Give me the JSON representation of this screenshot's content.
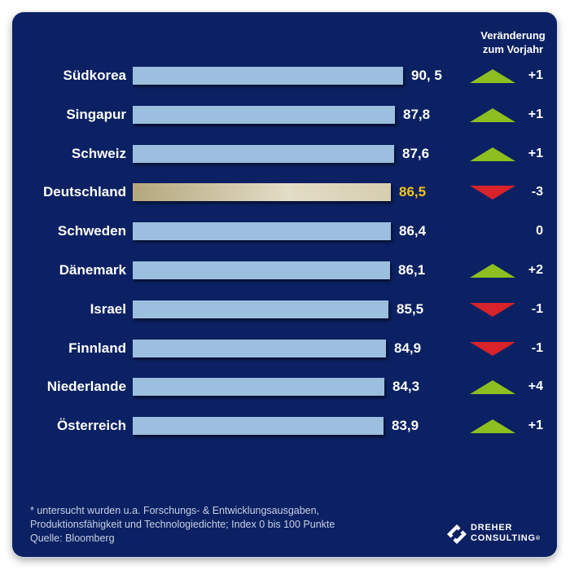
{
  "header": {
    "line1": "Veränderung",
    "line2": "zum Vorjahr"
  },
  "chart_data": {
    "type": "bar",
    "orientation": "horizontal",
    "xlim": [
      0,
      90.5
    ],
    "categories": [
      "Südkorea",
      "Singapur",
      "Schweiz",
      "Deutschland",
      "Schweden",
      "Dänemark",
      "Israel",
      "Finnland",
      "Niederlande",
      "Österreich"
    ],
    "values": [
      90.5,
      87.8,
      87.6,
      86.5,
      86.4,
      86.1,
      85.5,
      84.9,
      84.3,
      83.9
    ],
    "value_labels": [
      "90, 5",
      "87,8",
      "87,6",
      "86,5",
      "86,4",
      "86,1",
      "85,5",
      "84,9",
      "84,3",
      "83,9"
    ],
    "highlight": "Deutschland",
    "changes": [
      {
        "label": "+1",
        "direction": "up"
      },
      {
        "label": "+1",
        "direction": "up"
      },
      {
        "label": "+1",
        "direction": "up"
      },
      {
        "label": "-3",
        "direction": "down"
      },
      {
        "label": "0",
        "direction": "none"
      },
      {
        "label": "+2",
        "direction": "up"
      },
      {
        "label": "-1",
        "direction": "down"
      },
      {
        "label": "-1",
        "direction": "down"
      },
      {
        "label": "+4",
        "direction": "up"
      },
      {
        "label": "+1",
        "direction": "up"
      }
    ]
  },
  "colors": {
    "background": "#0b2163",
    "bar": "#9dbfdf",
    "highlight_value": "#f5c518",
    "up": "#8cbf1f",
    "down": "#d8232a"
  },
  "footnote": {
    "line1": "* untersucht wurden u.a. Forschungs- & Entwicklungsausgaben,",
    "line2": "Produktionsfähigkeit und Technologiedichte; Index 0 bis 100 Punkte",
    "line3": "Quelle: Bloomberg"
  },
  "logo": {
    "line1": "DREHER",
    "line2": "CONSULTING",
    "mark": "®"
  }
}
